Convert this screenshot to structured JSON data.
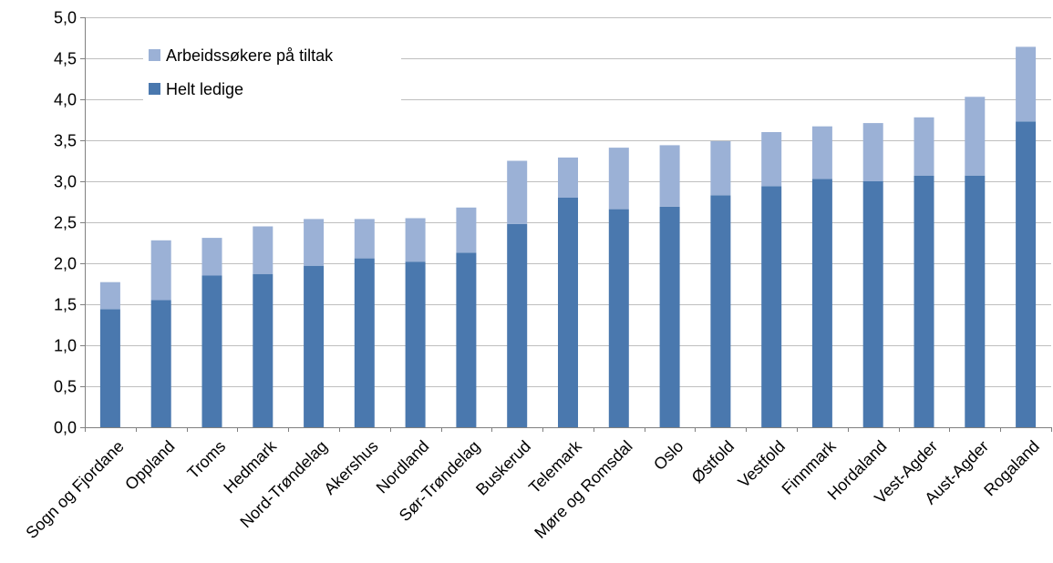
{
  "chart_data": {
    "type": "bar",
    "stacked": true,
    "categories": [
      "Sogn og Fjordane",
      "Oppland",
      "Troms",
      "Hedmark",
      "Nord-Trøndelag",
      "Akershus",
      "Nordland",
      "Sør-Trøndelag",
      "Buskerud",
      "Telemark",
      "Møre og Romsdal",
      "Oslo",
      "Østfold",
      "Vestfold",
      "Finnmark",
      "Hordaland",
      "Vest-Agder",
      "Aust-Agder",
      "Rogaland"
    ],
    "series": [
      {
        "name": "Helt ledige",
        "color": "#4a78ae",
        "values": [
          1.44,
          1.55,
          1.85,
          1.87,
          1.97,
          2.06,
          2.02,
          2.13,
          2.48,
          2.8,
          2.66,
          2.69,
          2.83,
          2.94,
          3.03,
          3.0,
          3.07,
          3.07,
          3.73
        ]
      },
      {
        "name": "Arbeidssøkere på tiltak",
        "color": "#9bb1d6",
        "values": [
          0.33,
          0.73,
          0.46,
          0.58,
          0.57,
          0.48,
          0.53,
          0.55,
          0.77,
          0.49,
          0.75,
          0.75,
          0.66,
          0.66,
          0.64,
          0.71,
          0.71,
          0.96,
          0.91
        ]
      }
    ],
    "legend_order": [
      "Arbeidssøkere på tiltak",
      "Helt ledige"
    ],
    "legend_position": "top-left",
    "ylim": [
      0,
      5
    ],
    "yticks": [
      "0,0",
      "0,5",
      "1,0",
      "1,5",
      "2,0",
      "2,5",
      "3,0",
      "3,5",
      "4,0",
      "4,5",
      "5,0"
    ],
    "ytick_values": [
      0,
      0.5,
      1,
      1.5,
      2,
      2.5,
      3,
      3.5,
      4,
      4.5,
      5
    ],
    "grid": true,
    "title": "",
    "xlabel": "",
    "ylabel": ""
  }
}
